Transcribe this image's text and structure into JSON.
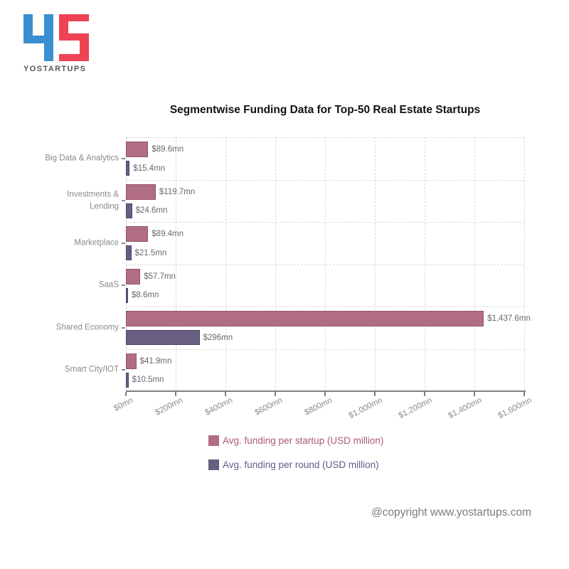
{
  "logo": {
    "wordmark": "YOSTARTUPS",
    "letter_y_color": "#3a8fd0",
    "letter_s_color": "#ee4353"
  },
  "chart_data": {
    "type": "bar",
    "orientation": "horizontal",
    "title": "Segmentwise Funding Data for Top-50 Real Estate Startups",
    "categories": [
      "Big Data & Analytics",
      "Investments &\nLending",
      "Marketplace",
      "SaaS",
      "Shared Economy",
      "Smart City/IOT"
    ],
    "series": [
      {
        "name": "Avg. funding per startup (USD million)",
        "color": "#b06d84",
        "border_color": "#95566d",
        "legend_text_color": "#ab5877",
        "values": [
          89.6,
          119.7,
          89.4,
          57.7,
          1437.6,
          41.9
        ],
        "value_labels": [
          "$89.6mn",
          "$119.7mn",
          "$89.4mn",
          "$57.7mn",
          "$1,437.6mn",
          "$41.9mn"
        ]
      },
      {
        "name": "Avg. funding per round (USD million)",
        "color": "#675e81",
        "border_color": "#4b4369",
        "legend_text_color": "#635a86",
        "values": [
          15.4,
          24.6,
          21.5,
          8.6,
          296,
          10.5
        ],
        "value_labels": [
          "$15.4mn",
          "$24.6mn",
          "$21.5mn",
          "$8.6mn",
          "$296mn",
          "$10.5mn"
        ]
      }
    ],
    "x_axis": {
      "max": 1600,
      "tick_values": [
        0,
        200,
        400,
        600,
        800,
        1000,
        1200,
        1400,
        1600
      ],
      "tick_labels": [
        "$0mn",
        "$200mn",
        "$400mn",
        "$600mn",
        "$800mn",
        "$1,000mn",
        "$1,200mn",
        "$1,400mn",
        "$1,600mn"
      ]
    },
    "grid": "dashed",
    "legend_position": "bottom"
  },
  "footer": {
    "copyright": "@copyright www.yostartups.com"
  }
}
